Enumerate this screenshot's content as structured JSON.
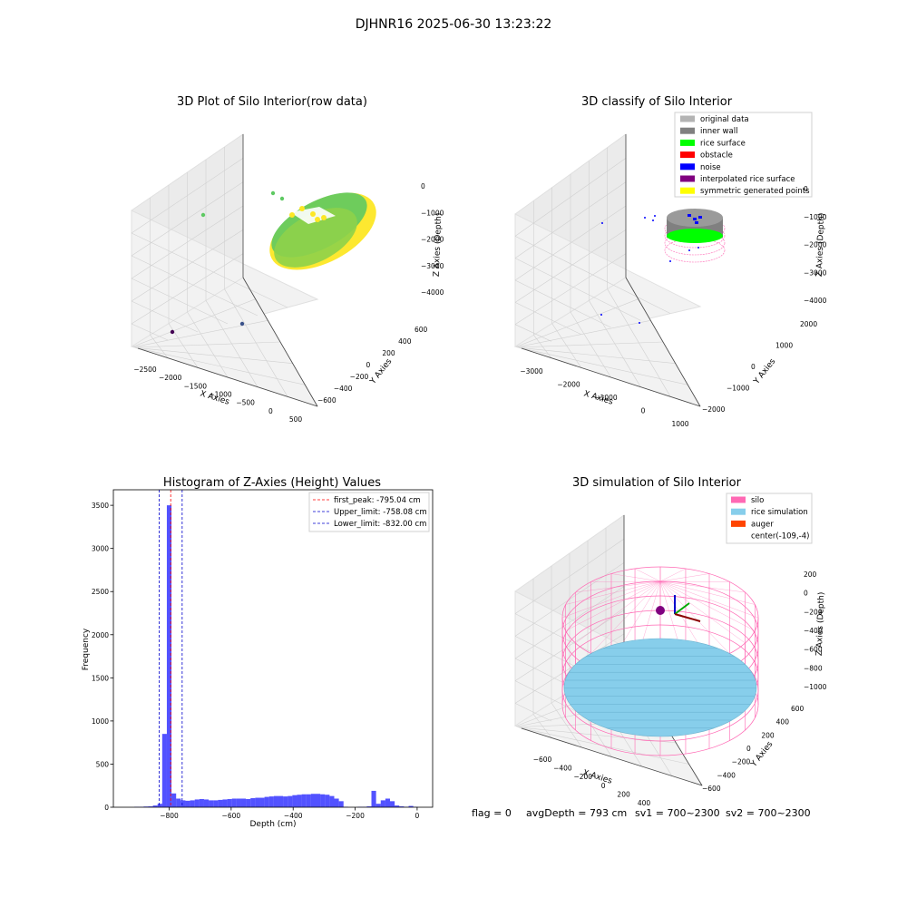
{
  "suptitle": "DJHNR16 2025-06-30 13:23:22",
  "status_line": {
    "flag": "flag = 0",
    "avg_depth": "avgDepth = 793 cm",
    "sv1": "sv1 = 700~2300",
    "sv2": "sv2 = 700~2300"
  },
  "colors": {
    "silo": "#ff69b4",
    "rice_simulation": "#87ceeb",
    "auger": "#ff4500",
    "histogram_bar": "#0000ff",
    "first_peak": "#ff0000",
    "limits": "#0000cd",
    "original_data": "#b3b3b3",
    "inner_wall": "#808080",
    "rice_surface": "#00ff00",
    "obstacle": "#ff0000",
    "noise": "#0000ff",
    "interpolated_rice_surface": "#800080",
    "symmetric_generated_points": "#ffff00"
  },
  "chart_data": [
    {
      "type": "scatter",
      "title": "3D Plot of Silo Interior(row data)",
      "xlabel": "X Axies",
      "ylabel": "Y Axies",
      "zlabel": "Z Axies (Depth)",
      "xticks": [
        "−2500",
        "−2000",
        "−1500",
        "−1000",
        "−500",
        "0",
        "500"
      ],
      "yticks": [
        "−600",
        "−400",
        "−200",
        "0",
        "200",
        "400",
        "600"
      ],
      "zticks": [
        "0",
        "−1000",
        "−2000",
        "−3000",
        "−4000"
      ],
      "colormap": [
        "#440154",
        "#3b528b",
        "#21918c",
        "#5ec962",
        "#fde725"
      ]
    },
    {
      "type": "scatter",
      "title": "3D classify of Silo Interior",
      "xlabel": "X Axies",
      "ylabel": "Y Axies",
      "zlabel": "Z Axies (Depth)",
      "xticks": [
        "−3000",
        "−2000",
        "−1000",
        "0",
        "1000"
      ],
      "yticks": [
        "−2000",
        "−1000",
        "0",
        "1000",
        "2000"
      ],
      "zticks": [
        "0",
        "−1000",
        "−2000",
        "−3000",
        "−4000"
      ],
      "legend": [
        "original data",
        "inner wall",
        "rice surface",
        "obstacle",
        "noise",
        "interpolated rice surface",
        "symmetric generated points"
      ],
      "legend_placement": "top-right"
    },
    {
      "type": "bar",
      "title": "Histogram of Z-Axies (Height) Values",
      "xlabel": "Depth (cm)",
      "ylabel": "Frequency",
      "xlim": [
        -980,
        50
      ],
      "ylim": [
        0,
        3680
      ],
      "xticks": [
        -800,
        -600,
        -400,
        -200,
        0
      ],
      "xtick_labels": [
        "−800",
        "−600",
        "−400",
        "−200",
        "0"
      ],
      "yticks": [
        0,
        500,
        1000,
        1500,
        2000,
        2500,
        3000,
        3500
      ],
      "bin_width": 15,
      "bins": [
        {
          "x": -905,
          "v": 5
        },
        {
          "x": -890,
          "v": 5
        },
        {
          "x": -875,
          "v": 8
        },
        {
          "x": -860,
          "v": 10
        },
        {
          "x": -845,
          "v": 20
        },
        {
          "x": -830,
          "v": 40
        },
        {
          "x": -815,
          "v": 850
        },
        {
          "x": -800,
          "v": 3500
        },
        {
          "x": -785,
          "v": 160
        },
        {
          "x": -770,
          "v": 100
        },
        {
          "x": -755,
          "v": 80
        },
        {
          "x": -740,
          "v": 75
        },
        {
          "x": -725,
          "v": 80
        },
        {
          "x": -710,
          "v": 90
        },
        {
          "x": -695,
          "v": 95
        },
        {
          "x": -680,
          "v": 90
        },
        {
          "x": -665,
          "v": 80
        },
        {
          "x": -650,
          "v": 80
        },
        {
          "x": -635,
          "v": 85
        },
        {
          "x": -620,
          "v": 90
        },
        {
          "x": -605,
          "v": 95
        },
        {
          "x": -590,
          "v": 100
        },
        {
          "x": -575,
          "v": 100
        },
        {
          "x": -560,
          "v": 100
        },
        {
          "x": -545,
          "v": 95
        },
        {
          "x": -530,
          "v": 105
        },
        {
          "x": -515,
          "v": 110
        },
        {
          "x": -500,
          "v": 110
        },
        {
          "x": -485,
          "v": 120
        },
        {
          "x": -470,
          "v": 125
        },
        {
          "x": -455,
          "v": 130
        },
        {
          "x": -440,
          "v": 130
        },
        {
          "x": -425,
          "v": 125
        },
        {
          "x": -410,
          "v": 130
        },
        {
          "x": -395,
          "v": 140
        },
        {
          "x": -380,
          "v": 145
        },
        {
          "x": -365,
          "v": 150
        },
        {
          "x": -350,
          "v": 150
        },
        {
          "x": -335,
          "v": 155
        },
        {
          "x": -320,
          "v": 155
        },
        {
          "x": -305,
          "v": 150
        },
        {
          "x": -290,
          "v": 145
        },
        {
          "x": -275,
          "v": 130
        },
        {
          "x": -260,
          "v": 100
        },
        {
          "x": -245,
          "v": 70
        },
        {
          "x": -230,
          "v": 5
        },
        {
          "x": -215,
          "v": 0
        },
        {
          "x": -200,
          "v": 0
        },
        {
          "x": -185,
          "v": 5
        },
        {
          "x": -170,
          "v": 5
        },
        {
          "x": -155,
          "v": 10
        },
        {
          "x": -140,
          "v": 190
        },
        {
          "x": -125,
          "v": 40
        },
        {
          "x": -110,
          "v": 80
        },
        {
          "x": -95,
          "v": 100
        },
        {
          "x": -80,
          "v": 70
        },
        {
          "x": -65,
          "v": 20
        },
        {
          "x": -50,
          "v": 10
        },
        {
          "x": -35,
          "v": 5
        },
        {
          "x": -20,
          "v": 15
        },
        {
          "x": -5,
          "v": 5
        }
      ],
      "lines": [
        {
          "label": "first_peak: -795.04 cm",
          "x": -795.04,
          "color": "#ff0000"
        },
        {
          "label": "Upper_limit: -758.08 cm",
          "x": -758.08,
          "color": "#0000cd"
        },
        {
          "label": "Lower_limit: -832.00 cm",
          "x": -832.0,
          "color": "#0000cd"
        }
      ],
      "legend_placement": "top-right"
    },
    {
      "type": "scatter",
      "title": "3D simulation of Silo Interior",
      "xlabel": "X Axies",
      "ylabel": "Y Axies",
      "zlabel": "Z Axies (Depth)",
      "xticks": [
        "−600",
        "−400",
        "−200",
        "0",
        "200",
        "400"
      ],
      "yticks": [
        "−600",
        "−400",
        "−200",
        "0",
        "200",
        "400",
        "600"
      ],
      "zticks": [
        "200",
        "0",
        "−200",
        "−400",
        "−600",
        "−800",
        "−1000"
      ],
      "legend": [
        "silo",
        "rice simulation",
        "auger",
        "center(-109,-4)"
      ],
      "legend_placement": "top-right"
    }
  ]
}
